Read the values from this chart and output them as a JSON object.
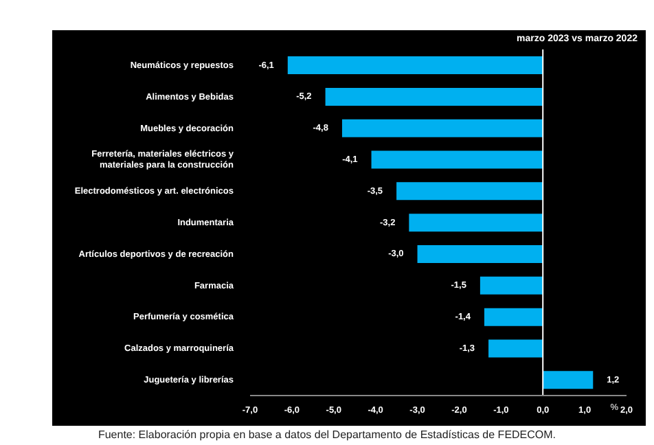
{
  "chart_data": {
    "type": "bar",
    "orientation": "horizontal",
    "subtitle": "marzo 2023 vs  marzo 2022",
    "xlabel": "%",
    "categories": [
      "Neumáticos y repuestos",
      "Alimentos y Bebidas",
      "Muebles y decoración",
      "Ferretería, materiales eléctricos y materiales para la construcción",
      "Electrodomésticos y art. electrónicos",
      "Indumentaria",
      "Artículos deportivos y de recreación",
      "Farmacia",
      "Perfumería y cosmética",
      "Calzados y marroquinería",
      "Juguetería y librerías"
    ],
    "values": [
      -6.1,
      -5.2,
      -4.8,
      -4.1,
      -3.5,
      -3.2,
      -3.0,
      -1.5,
      -1.4,
      -1.3,
      1.2
    ],
    "value_labels": [
      "-6,1",
      "-5,2",
      "-4,8",
      "-4,1",
      "-3,5",
      "-3,2",
      "-3,0",
      "-1,5",
      "-1,4",
      "-1,3",
      "1,2"
    ],
    "color": "#00b0f0",
    "xlim": [
      -7,
      2
    ],
    "xticks": [
      {
        "value": -7,
        "label": "-7,0"
      },
      {
        "value": -6,
        "label": "-6,0"
      },
      {
        "value": -5,
        "label": "-5,0"
      },
      {
        "value": -4,
        "label": "-4,0"
      },
      {
        "value": -3,
        "label": "-3,0"
      },
      {
        "value": -2,
        "label": "-2,0"
      },
      {
        "value": -1,
        "label": "-1,0"
      },
      {
        "value": 0,
        "label": "0,0"
      },
      {
        "value": 1,
        "label": "1,0"
      },
      {
        "value": 2,
        "label": "2,0"
      }
    ],
    "ref_lines": [
      {
        "axis": "x",
        "value": 0,
        "color": "#ffffff"
      }
    ],
    "grid": false,
    "legend": false,
    "annotations": [
      "Fuente: Elaboración propia en base a datos del Departamento de Estadísticas de FEDECOM."
    ]
  }
}
